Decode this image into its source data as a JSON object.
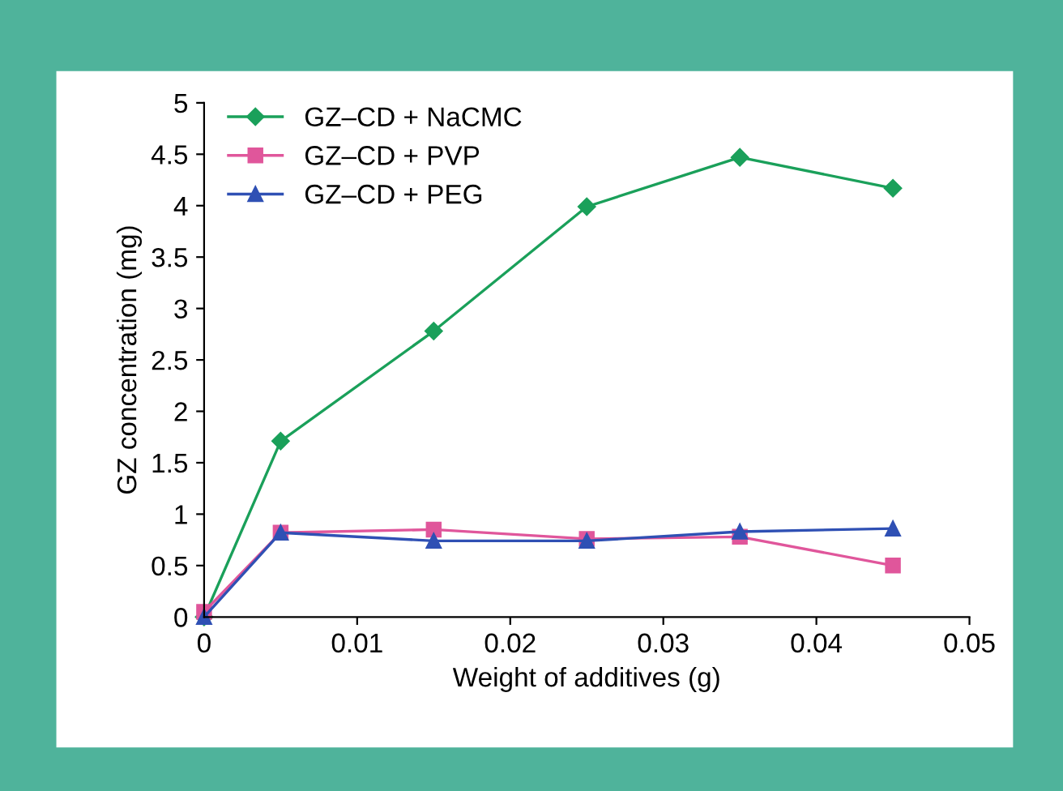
{
  "chart_data": {
    "type": "line",
    "xlabel": "Weight of additives (g)",
    "ylabel": "GZ concentration (mg)",
    "x": [
      0,
      0.005,
      0.015,
      0.025,
      0.035,
      0.045
    ],
    "series": [
      {
        "name": "GZ–CD + NaCMC",
        "color": "#1aa05a",
        "marker": "diamond",
        "values": [
          0,
          1.71,
          2.78,
          3.99,
          4.47,
          4.17
        ]
      },
      {
        "name": "GZ–CD + PVP",
        "color": "#e0569b",
        "marker": "square",
        "values": [
          0.05,
          0.82,
          0.85,
          0.76,
          0.78,
          0.5
        ]
      },
      {
        "name": "GZ–CD + PEG",
        "color": "#2f50b4",
        "marker": "triangle",
        "values": [
          0,
          0.82,
          0.74,
          0.74,
          0.83,
          0.86
        ]
      }
    ],
    "xlim": [
      0,
      0.05
    ],
    "xticks": [
      0,
      0.01,
      0.02,
      0.03,
      0.04,
      0.05
    ],
    "ylim": [
      0,
      5
    ],
    "yticks": [
      0,
      {
        "value": 0.5,
        "label": "0.5"
      },
      1,
      {
        "value": 1.5,
        "label": "1.5"
      },
      2,
      {
        "value": 2.5,
        "label": "2.5"
      },
      3,
      {
        "value": 3.5,
        "label": "3.5"
      },
      4,
      {
        "value": 4.5,
        "label": "4.5"
      },
      5
    ],
    "grid": false,
    "legend": "top left",
    "line_style": "solid"
  }
}
